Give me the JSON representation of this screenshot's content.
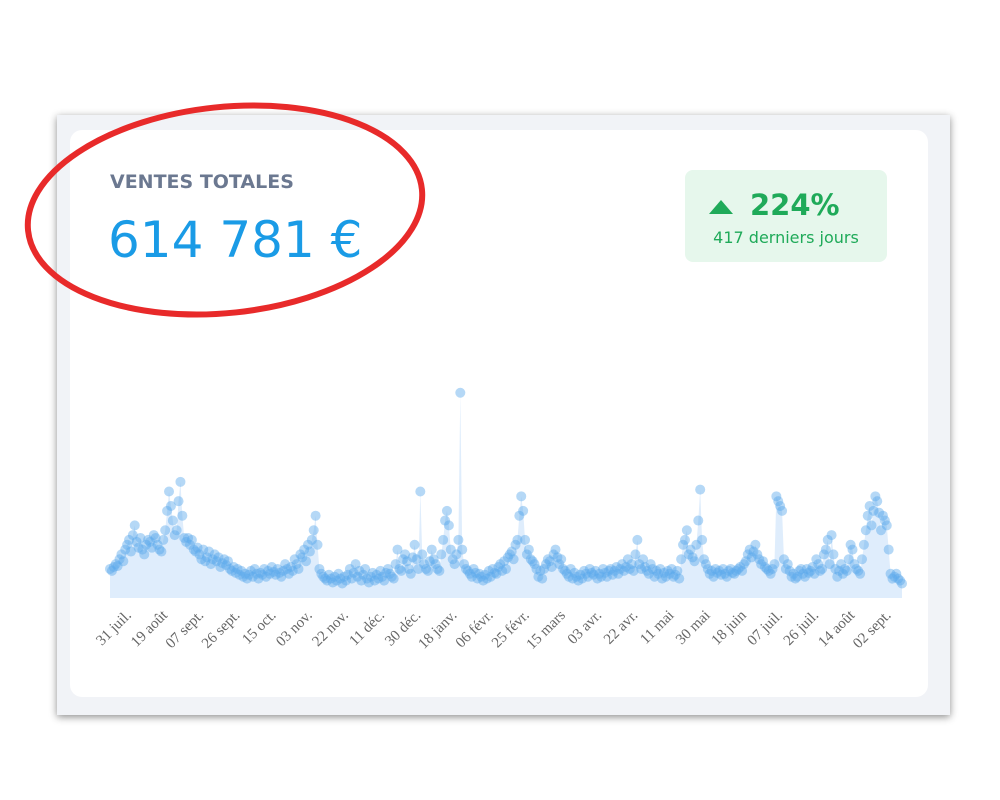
{
  "card": {
    "title": "VENTES TOTALES",
    "total": "614 781 €",
    "change": "224%",
    "period": "417 derniers jours"
  },
  "chart_data": {
    "type": "scatter-area",
    "color": "#5ca8ea",
    "ylim": [
      0,
      220
    ],
    "categories": [
      "31 juil.",
      null,
      null,
      null,
      null,
      null,
      null,
      null,
      null,
      null,
      null,
      null,
      null,
      null,
      null,
      null,
      null,
      null,
      null,
      "19 août",
      null,
      null,
      null,
      null,
      null,
      null,
      null,
      null,
      null,
      null,
      null,
      null,
      null,
      null,
      null,
      null,
      null,
      null,
      "07 sept.",
      null,
      null,
      null,
      null,
      null,
      null,
      null,
      null,
      null,
      null,
      null,
      null,
      null,
      null,
      null,
      null,
      null,
      null,
      "26 sept.",
      null,
      null,
      null,
      null,
      null,
      null,
      null,
      null,
      null,
      null,
      null,
      null,
      null,
      null,
      null,
      null,
      null,
      null,
      "15 oct.",
      null,
      null,
      null,
      null,
      null,
      null,
      null,
      null,
      null,
      null,
      null,
      null,
      null,
      null,
      null,
      null,
      null,
      null,
      "03 nov.",
      null,
      null,
      null,
      null,
      null,
      null,
      null,
      null,
      null,
      null,
      null,
      null,
      null,
      null,
      null,
      null,
      null,
      null,
      "22 nov.",
      null,
      null,
      null,
      null,
      null,
      null,
      null,
      null,
      null,
      null,
      null,
      null,
      null,
      null,
      null,
      null,
      null,
      null,
      "11 déc.",
      null,
      null,
      null,
      null,
      null,
      null,
      null,
      null,
      null,
      null,
      null,
      null,
      null,
      null,
      null,
      null,
      null,
      null,
      "30 déc.",
      null,
      null,
      null,
      null,
      null,
      null,
      null,
      null,
      null,
      null,
      null,
      null,
      null,
      null,
      null,
      null,
      null,
      null,
      "18 janv.",
      null,
      null,
      null,
      null,
      null,
      null,
      null,
      null,
      null,
      null,
      null,
      null,
      null,
      null,
      null,
      null,
      null,
      null,
      "06 févr.",
      null,
      null,
      null,
      null,
      null,
      null,
      null,
      null,
      null,
      null,
      null,
      null,
      null,
      null,
      null,
      null,
      null,
      null,
      "25 févr.",
      null,
      null,
      null,
      null,
      null,
      null,
      null,
      null,
      null,
      null,
      null,
      null,
      null,
      null,
      null,
      null,
      null,
      null,
      "15 mars",
      null,
      null,
      null,
      null,
      null,
      null,
      null,
      null,
      null,
      null,
      null,
      null,
      null,
      null,
      null,
      null,
      null,
      null,
      "03 avr.",
      null,
      null,
      null,
      null,
      null,
      null,
      null,
      null,
      null,
      null,
      null,
      null,
      null,
      null,
      null,
      null,
      null,
      null,
      "22 avr.",
      null,
      null,
      null,
      null,
      null,
      null,
      null,
      null,
      null,
      null,
      null,
      null,
      null,
      null,
      null,
      null,
      null,
      null,
      "11 mai",
      null,
      null,
      null,
      null,
      null,
      null,
      null,
      null,
      null,
      null,
      null,
      null,
      null,
      null,
      null,
      null,
      null,
      null,
      "30 mai",
      null,
      null,
      null,
      null,
      null,
      null,
      null,
      null,
      null,
      null,
      null,
      null,
      null,
      null,
      null,
      null,
      null,
      null,
      "18 juin",
      null,
      null,
      null,
      null,
      null,
      null,
      null,
      null,
      null,
      null,
      null,
      null,
      null,
      null,
      null,
      null,
      null,
      null,
      "07 juil.",
      null,
      null,
      null,
      null,
      null,
      null,
      null,
      null,
      null,
      null,
      null,
      null,
      null,
      null,
      null,
      null,
      null,
      null,
      "26 juil.",
      null,
      null,
      null,
      null,
      null,
      null,
      null,
      null,
      null,
      null,
      null,
      null,
      null,
      null,
      null,
      null,
      null,
      null,
      "14 août",
      null,
      null,
      null,
      null,
      null,
      null,
      null,
      null,
      null,
      null,
      null,
      null,
      null,
      null,
      null,
      null,
      null,
      null,
      "02 sept.",
      null,
      null,
      null,
      null,
      null,
      null,
      null,
      null,
      null,
      null,
      null,
      null,
      null,
      null,
      null,
      null,
      null
    ],
    "values": [
      30,
      28,
      32,
      35,
      33,
      40,
      45,
      38,
      50,
      55,
      60,
      48,
      65,
      75,
      58,
      52,
      62,
      50,
      45,
      55,
      60,
      58,
      52,
      65,
      62,
      55,
      50,
      48,
      60,
      70,
      90,
      110,
      95,
      80,
      65,
      70,
      100,
      120,
      85,
      62,
      58,
      62,
      55,
      60,
      50,
      48,
      52,
      45,
      40,
      50,
      38,
      42,
      48,
      35,
      40,
      45,
      38,
      42,
      32,
      36,
      40,
      34,
      38,
      30,
      28,
      32,
      26,
      30,
      24,
      28,
      22,
      25,
      20,
      24,
      28,
      22,
      30,
      25,
      20,
      26,
      24,
      30,
      22,
      28,
      25,
      32,
      27,
      24,
      30,
      26,
      22,
      28,
      35,
      30,
      25,
      32,
      28,
      40,
      35,
      30,
      45,
      42,
      50,
      38,
      55,
      48,
      60,
      70,
      85,
      55,
      30,
      25,
      22,
      20,
      18,
      24,
      20,
      16,
      22,
      18,
      25,
      20,
      15,
      22,
      18,
      24,
      30,
      20,
      26,
      35,
      22,
      28,
      18,
      24,
      30,
      20,
      16,
      22,
      26,
      18,
      24,
      20,
      28,
      22,
      18,
      26,
      30,
      25,
      22,
      20,
      35,
      50,
      30,
      28,
      40,
      45,
      38,
      30,
      25,
      42,
      55,
      40,
      30,
      110,
      45,
      35,
      30,
      28,
      38,
      50,
      40,
      35,
      30,
      28,
      45,
      60,
      80,
      90,
      75,
      50,
      40,
      35,
      45,
      60,
      212,
      50,
      35,
      30,
      28,
      25,
      22,
      30,
      26,
      20,
      25,
      22,
      18,
      24,
      20,
      28,
      22,
      30,
      26,
      25,
      32,
      35,
      28,
      38,
      30,
      42,
      45,
      48,
      40,
      55,
      60,
      85,
      105,
      90,
      60,
      45,
      50,
      40,
      38,
      35,
      30,
      22,
      28,
      20,
      30,
      35,
      40,
      38,
      32,
      45,
      50,
      42,
      35,
      40,
      30,
      28,
      25,
      22,
      30,
      20,
      26,
      22,
      18,
      24,
      20,
      28,
      25,
      22,
      30,
      26,
      24,
      28,
      20,
      25,
      22,
      30,
      26,
      22,
      28,
      30,
      24,
      28,
      32,
      25,
      30,
      35,
      28,
      32,
      40,
      30,
      35,
      28,
      45,
      60,
      35,
      30,
      40,
      32,
      28,
      25,
      35,
      30,
      22,
      28,
      25,
      30,
      20,
      26,
      22,
      28,
      25,
      30,
      22,
      24,
      28,
      20,
      40,
      55,
      60,
      70,
      45,
      50,
      42,
      38,
      55,
      80,
      112,
      60,
      40,
      35,
      30,
      25,
      28,
      22,
      30,
      26,
      28,
      24,
      30,
      25,
      22,
      28,
      30,
      26,
      25,
      28,
      30,
      32,
      28,
      35,
      38,
      45,
      50,
      42,
      48,
      55,
      45,
      40,
      35,
      38,
      32,
      30,
      28,
      25,
      30,
      35,
      105,
      100,
      95,
      90,
      40,
      30,
      35,
      28,
      22,
      25,
      20,
      22,
      28,
      30,
      25,
      22,
      30,
      26,
      28,
      32,
      25,
      40,
      35,
      28,
      30,
      45,
      50,
      60,
      35,
      65,
      45,
      30,
      22,
      28,
      35,
      25,
      30,
      28,
      40,
      55,
      50,
      35,
      30,
      28,
      25,
      40,
      55,
      70,
      85,
      95,
      75,
      90,
      105,
      100,
      88,
      70,
      85,
      80,
      75,
      50,
      25,
      20,
      22,
      25,
      20,
      18,
      15
    ]
  }
}
